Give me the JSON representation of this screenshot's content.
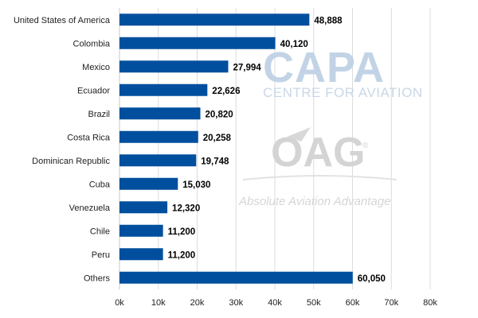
{
  "chart_data": {
    "type": "bar",
    "orientation": "horizontal",
    "categories": [
      "United States of America",
      "Colombia",
      "Mexico",
      "Ecuador",
      "Brazil",
      "Costa Rica",
      "Dominican Republic",
      "Cuba",
      "Venezuela",
      "Chile",
      "Peru",
      "Others"
    ],
    "values": [
      48888,
      40120,
      27994,
      22626,
      20820,
      20258,
      19748,
      15030,
      12320,
      11200,
      11200,
      60050
    ],
    "value_labels": [
      "48,888",
      "40,120",
      "27,994",
      "22,626",
      "20,820",
      "20,258",
      "19,748",
      "15,030",
      "12,320",
      "11,200",
      "11,200",
      "60,050"
    ],
    "xlim": [
      0,
      80000
    ],
    "xticks": [
      0,
      10000,
      20000,
      30000,
      40000,
      50000,
      60000,
      70000,
      80000
    ],
    "xtick_labels": [
      "0k",
      "10k",
      "20k",
      "30k",
      "40k",
      "50k",
      "60k",
      "70k",
      "80k"
    ],
    "grid": "vertical",
    "bar_color": "#004f9e",
    "title": "",
    "xlabel": "",
    "ylabel": ""
  },
  "watermarks": {
    "capa_logo": "CAPA",
    "capa_subtitle": "CENTRE FOR AVIATION",
    "oag_logo": "OAG",
    "oag_mark": "®",
    "oag_tagline": "Absolute Aviation Advantage"
  }
}
